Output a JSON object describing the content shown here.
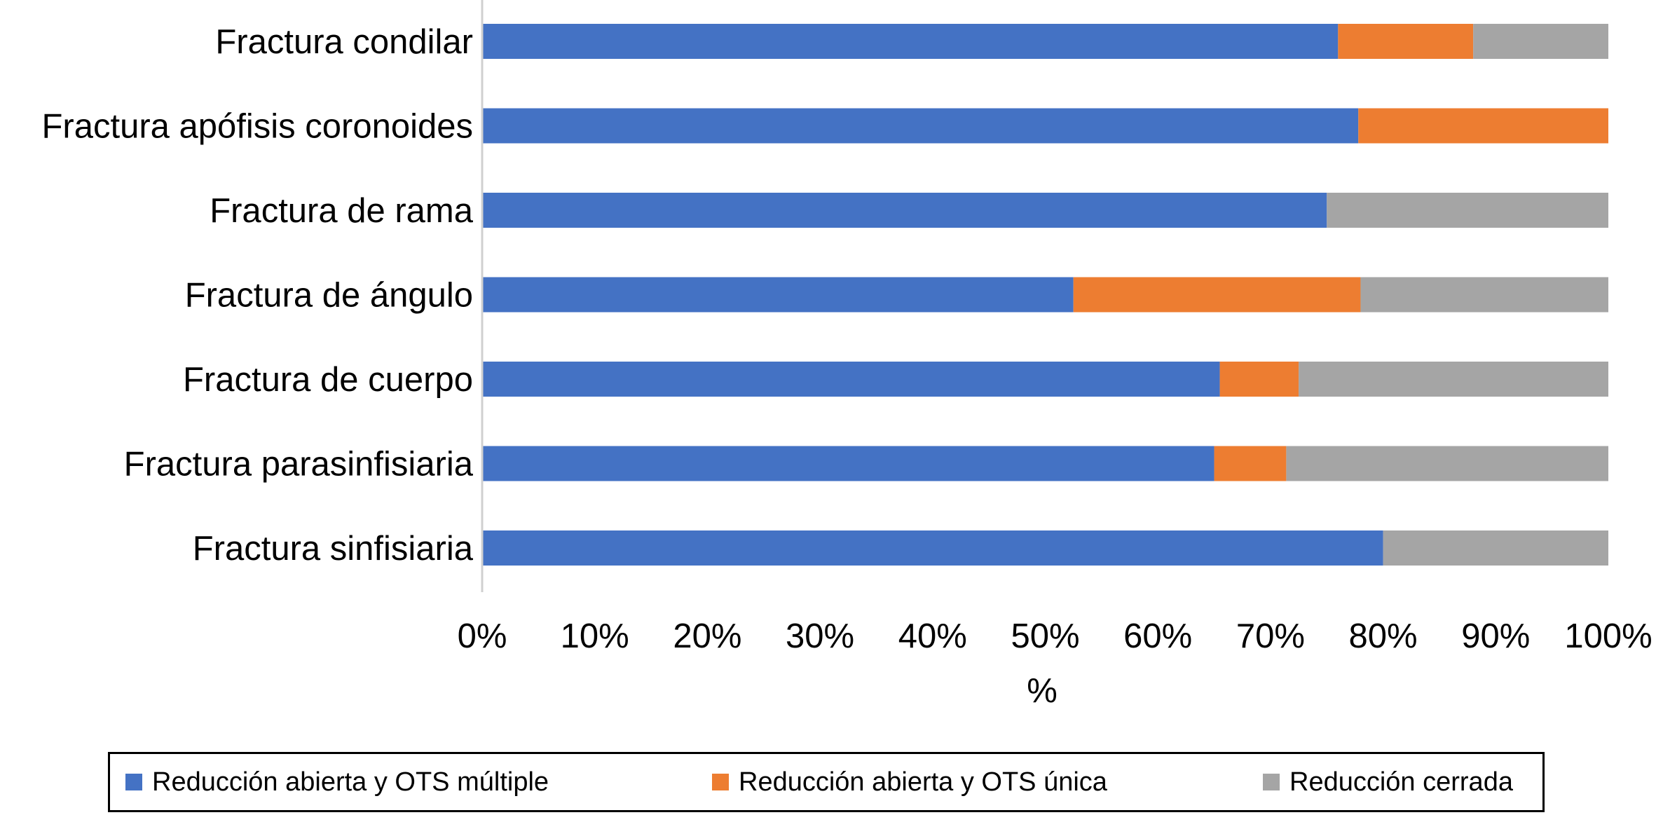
{
  "chart_data": {
    "type": "bar",
    "orientation": "horizontal",
    "stacked": "percent",
    "categories": [
      "Fractura condilar",
      "Fractura apófisis coronoides",
      "Fractura de rama",
      "Fractura de ángulo",
      "Fractura de cuerpo",
      "Fractura parasinfisiaria",
      "Fractura sinfisiaria"
    ],
    "series": [
      {
        "name": "Reducción abierta y OTS múltiple",
        "color": "#4472c4",
        "values": [
          76,
          77.8,
          75,
          52.5,
          65.5,
          65,
          80
        ]
      },
      {
        "name": "Reducción abierta y OTS única",
        "color": "#ed7d31",
        "values": [
          12,
          22.2,
          0,
          25.5,
          7,
          6.4,
          0
        ]
      },
      {
        "name": "Reducción cerrada",
        "color": "#a5a5a5",
        "values": [
          12,
          0,
          25,
          22,
          27.5,
          28.6,
          20
        ]
      }
    ],
    "xticks": [
      "0%",
      "10%",
      "20%",
      "30%",
      "40%",
      "50%",
      "60%",
      "70%",
      "80%",
      "90%",
      "100%"
    ],
    "xlabel": "%",
    "ylabel": "",
    "xlim": [
      0,
      100
    ],
    "grid": false,
    "legend_position": "bottom"
  }
}
